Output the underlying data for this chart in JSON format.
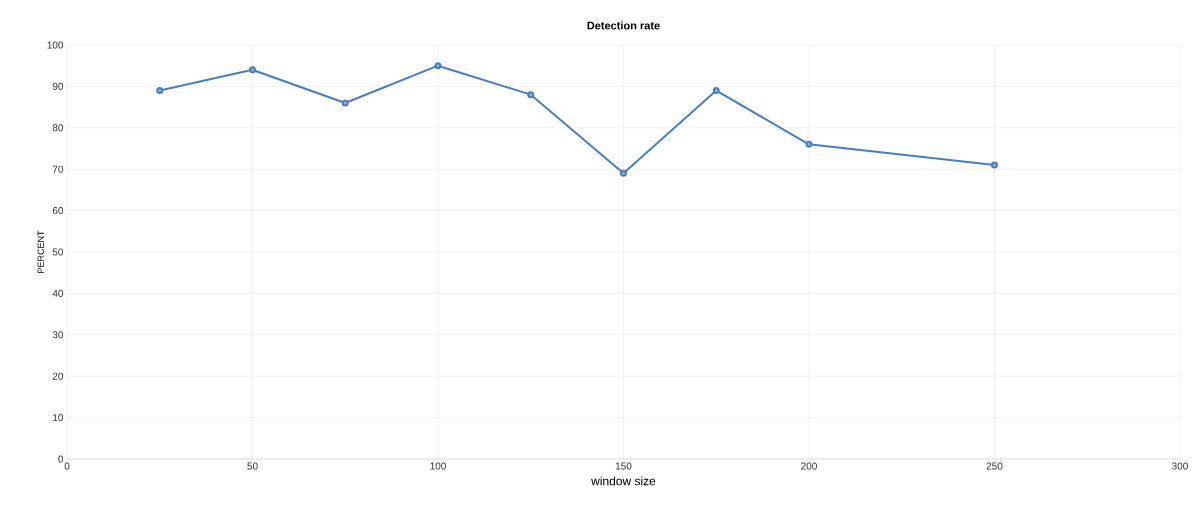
{
  "chart_data": {
    "type": "line",
    "title": "Detection rate",
    "xlabel": "window size",
    "ylabel": "PERCENT",
    "x": [
      25,
      50,
      75,
      100,
      125,
      150,
      175,
      200,
      250
    ],
    "series": [
      {
        "color": "#4a7ebb",
        "values": [
          89,
          94,
          86,
          95,
          88,
          69,
          89,
          76,
          71
        ]
      }
    ],
    "xlim": [
      0,
      300
    ],
    "xticks": [
      0,
      50,
      100,
      150,
      200,
      250,
      300
    ],
    "ylim": [
      0,
      100
    ],
    "yticks": [
      0,
      10,
      20,
      30,
      40,
      50,
      60,
      70,
      80,
      90,
      100
    ],
    "grid": true,
    "marker": "circle",
    "line_style": "solid"
  }
}
